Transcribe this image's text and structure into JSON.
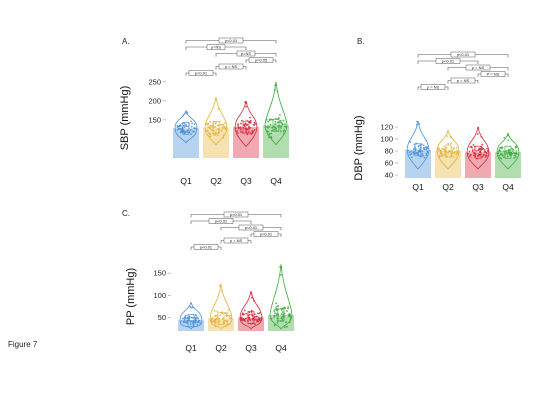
{
  "figure_label": "Figure 7",
  "colors": {
    "Q1": "#4a90d9",
    "Q2": "#e6b43c",
    "Q3": "#d6283a",
    "Q4": "#3bab3b"
  },
  "chart_data": [
    {
      "panel": "A.",
      "type": "bar",
      "overlay": "violin-with-jittered-points",
      "categories": [
        "Q1",
        "Q2",
        "Q3",
        "Q4"
      ],
      "values": [
        128,
        130,
        131,
        136
      ],
      "ylabel": "SBP (mmHg)",
      "ylim": [
        50,
        260
      ],
      "yticks": [
        150,
        200,
        250
      ],
      "ytick_labels": [
        "150",
        "200",
        "250"
      ],
      "ranges": [
        [
          90,
          175
        ],
        [
          85,
          210
        ],
        [
          80,
          200
        ],
        [
          85,
          250
        ]
      ],
      "comparisons": [
        {
          "from": "Q1",
          "to": "Q4",
          "label": "p<0.01"
        },
        {
          "from": "Q1",
          "to": "Q3",
          "label": "p=NS"
        },
        {
          "from": "Q2",
          "to": "Q4",
          "label": "p=NS"
        },
        {
          "from": "Q3",
          "to": "Q4",
          "label": "p=0.05"
        },
        {
          "from": "Q2",
          "to": "Q3",
          "label": "p = NS"
        },
        {
          "from": "Q1",
          "to": "Q2",
          "label": "p<0.01"
        }
      ]
    },
    {
      "panel": "B.",
      "type": "bar",
      "overlay": "violin-with-jittered-points",
      "categories": [
        "Q1",
        "Q2",
        "Q3",
        "Q4"
      ],
      "values": [
        82,
        80,
        78,
        78
      ],
      "ylabel": "DBP (mmHg)",
      "ylim": [
        35,
        135
      ],
      "yticks": [
        40,
        60,
        80,
        100,
        120
      ],
      "ytick_labels": [
        "40",
        "60",
        "80",
        "100",
        "120"
      ],
      "ranges": [
        [
          50,
          130
        ],
        [
          50,
          115
        ],
        [
          50,
          120
        ],
        [
          50,
          110
        ]
      ],
      "comparisons": [
        {
          "from": "Q1",
          "to": "Q4",
          "label": "p<0.01"
        },
        {
          "from": "Q1",
          "to": "Q3",
          "label": "p<0.01"
        },
        {
          "from": "Q2",
          "to": "Q4",
          "label": "p = NS"
        },
        {
          "from": "Q3",
          "to": "Q4",
          "label": "P = NS"
        },
        {
          "from": "Q2",
          "to": "Q3",
          "label": "p = NS"
        },
        {
          "from": "Q1",
          "to": "Q2",
          "label": "p = NS"
        }
      ]
    },
    {
      "panel": "C.",
      "type": "bar",
      "overlay": "violin-with-jittered-points",
      "categories": [
        "Q1",
        "Q2",
        "Q3",
        "Q4"
      ],
      "values": [
        44,
        48,
        50,
        56
      ],
      "ylabel": "PP (mmHg)",
      "ylim": [
        20,
        175
      ],
      "yticks": [
        50,
        100,
        150
      ],
      "ytick_labels": [
        "50",
        "100",
        "150"
      ],
      "ranges": [
        [
          25,
          85
        ],
        [
          25,
          125
        ],
        [
          25,
          110
        ],
        [
          25,
          170
        ]
      ],
      "comparisons": [
        {
          "from": "Q1",
          "to": "Q4",
          "label": "p<0.01"
        },
        {
          "from": "Q1",
          "to": "Q3",
          "label": "p<0.01"
        },
        {
          "from": "Q2",
          "to": "Q4",
          "label": "p<0.01"
        },
        {
          "from": "Q3",
          "to": "Q4",
          "label": "p<0.01"
        },
        {
          "from": "Q2",
          "to": "Q3",
          "label": "p = NS"
        },
        {
          "from": "Q1",
          "to": "Q2",
          "label": "p<0.01"
        }
      ]
    }
  ]
}
